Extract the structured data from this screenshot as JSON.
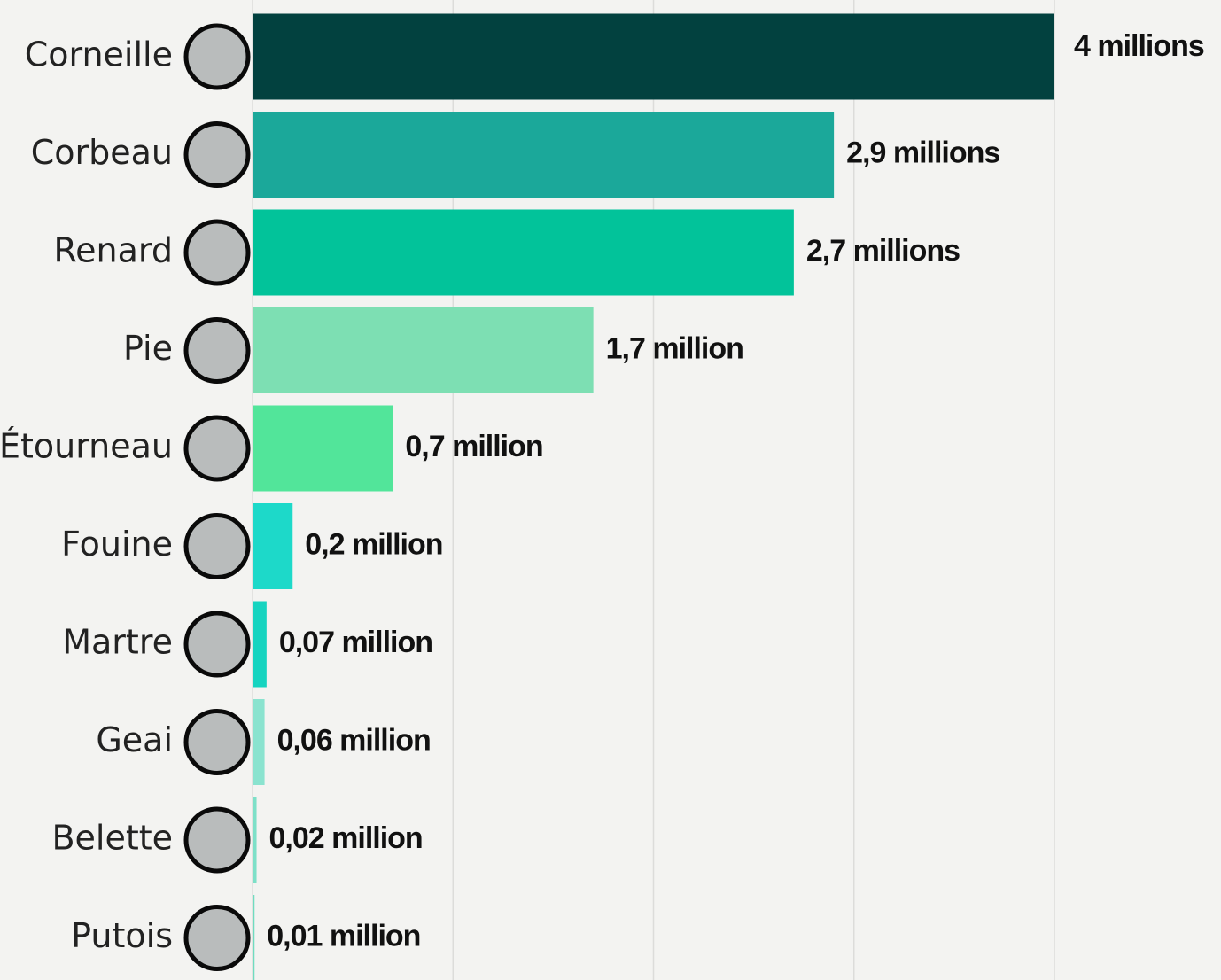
{
  "chart_data": {
    "type": "hbar",
    "categories": [
      "Corneille",
      "Corbeau",
      "Renard",
      "Pie",
      "Étourneau",
      "Fouine",
      "Martre",
      "Geai",
      "Belette",
      "Putois"
    ],
    "values": [
      4,
      2.9,
      2.7,
      1.7,
      0.7,
      0.2,
      0.07,
      0.06,
      0.02,
      0.01
    ],
    "value_labels": [
      "4 millions",
      "2,9 millions",
      "2,7 millions",
      "1,7 million",
      "0,7 million",
      "0,2 million",
      "0,07 million",
      "0,06 million",
      "0,02 million",
      "0,01 million"
    ],
    "colors": [
      "#02413f",
      "#1ba89a",
      "#02c39a",
      "#7ddfb3",
      "#52e59a",
      "#1dd9c9",
      "#16d4c0",
      "#8ae3cf",
      "#7de0c8",
      "#6fdcc0"
    ],
    "xlim": [
      0,
      4
    ],
    "xticks": [
      0,
      1,
      2,
      3,
      4
    ],
    "grid": true
  }
}
